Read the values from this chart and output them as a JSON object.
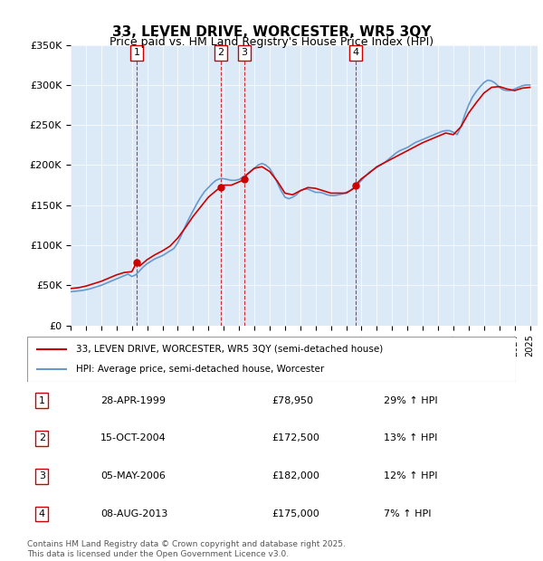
{
  "title": "33, LEVEN DRIVE, WORCESTER, WR5 3QY",
  "subtitle": "Price paid vs. HM Land Registry's House Price Index (HPI)",
  "ylabel_ticks": [
    "£0",
    "£50K",
    "£100K",
    "£150K",
    "£200K",
    "£250K",
    "£300K",
    "£350K"
  ],
  "ylim": [
    0,
    350000
  ],
  "yticks": [
    0,
    50000,
    100000,
    150000,
    200000,
    250000,
    300000,
    350000
  ],
  "xlim_start": 1995.0,
  "xlim_end": 2025.5,
  "bg_color": "#dce9f7",
  "plot_bg": "#dce9f7",
  "red_color": "#cc0000",
  "blue_color": "#6699cc",
  "transactions": [
    {
      "num": 1,
      "date": "28-APR-1999",
      "price": 78950,
      "pct": "29%",
      "year": 1999.32
    },
    {
      "num": 2,
      "date": "15-OCT-2004",
      "price": 172500,
      "pct": "13%",
      "year": 2004.79
    },
    {
      "num": 3,
      "date": "05-MAY-2006",
      "price": 182000,
      "pct": "12%",
      "year": 2006.34
    },
    {
      "num": 4,
      "date": "08-AUG-2013",
      "price": 175000,
      "pct": "7%",
      "year": 2013.6
    }
  ],
  "legend_line1": "33, LEVEN DRIVE, WORCESTER, WR5 3QY (semi-detached house)",
  "legend_line2": "HPI: Average price, semi-detached house, Worcester",
  "footer": "Contains HM Land Registry data © Crown copyright and database right 2025.\nThis data is licensed under the Open Government Licence v3.0.",
  "hpi_data": {
    "years": [
      1995.0,
      1995.25,
      1995.5,
      1995.75,
      1996.0,
      1996.25,
      1996.5,
      1996.75,
      1997.0,
      1997.25,
      1997.5,
      1997.75,
      1998.0,
      1998.25,
      1998.5,
      1998.75,
      1999.0,
      1999.25,
      1999.5,
      1999.75,
      2000.0,
      2000.25,
      2000.5,
      2000.75,
      2001.0,
      2001.25,
      2001.5,
      2001.75,
      2002.0,
      2002.25,
      2002.5,
      2002.75,
      2003.0,
      2003.25,
      2003.5,
      2003.75,
      2004.0,
      2004.25,
      2004.5,
      2004.75,
      2005.0,
      2005.25,
      2005.5,
      2005.75,
      2006.0,
      2006.25,
      2006.5,
      2006.75,
      2007.0,
      2007.25,
      2007.5,
      2007.75,
      2008.0,
      2008.25,
      2008.5,
      2008.75,
      2009.0,
      2009.25,
      2009.5,
      2009.75,
      2010.0,
      2010.25,
      2010.5,
      2010.75,
      2011.0,
      2011.25,
      2011.5,
      2011.75,
      2012.0,
      2012.25,
      2012.5,
      2012.75,
      2013.0,
      2013.25,
      2013.5,
      2013.75,
      2014.0,
      2014.25,
      2014.5,
      2014.75,
      2015.0,
      2015.25,
      2015.5,
      2015.75,
      2016.0,
      2016.25,
      2016.5,
      2016.75,
      2017.0,
      2017.25,
      2017.5,
      2017.75,
      2018.0,
      2018.25,
      2018.5,
      2018.75,
      2019.0,
      2019.25,
      2019.5,
      2019.75,
      2020.0,
      2020.25,
      2020.5,
      2020.75,
      2021.0,
      2021.25,
      2021.5,
      2021.75,
      2022.0,
      2022.25,
      2022.5,
      2022.75,
      2023.0,
      2023.25,
      2023.5,
      2023.75,
      2024.0,
      2024.25,
      2024.5,
      2024.75,
      2025.0
    ],
    "values": [
      42000,
      42500,
      43000,
      43500,
      44500,
      45500,
      47000,
      48500,
      50000,
      52000,
      54000,
      56000,
      58000,
      60000,
      62000,
      64000,
      61000,
      63000,
      68000,
      73000,
      77000,
      80000,
      83000,
      85000,
      87000,
      90000,
      93000,
      96000,
      103000,
      113000,
      124000,
      134000,
      143000,
      152000,
      160000,
      167000,
      172000,
      177000,
      181000,
      183000,
      183000,
      182000,
      181000,
      181000,
      182000,
      185000,
      188000,
      192000,
      196000,
      200000,
      202000,
      200000,
      196000,
      188000,
      178000,
      168000,
      160000,
      158000,
      160000,
      163000,
      168000,
      170000,
      170000,
      168000,
      166000,
      166000,
      165000,
      163000,
      162000,
      162000,
      163000,
      164000,
      166000,
      168000,
      172000,
      176000,
      181000,
      186000,
      191000,
      194000,
      197000,
      200000,
      203000,
      207000,
      211000,
      215000,
      218000,
      220000,
      222000,
      225000,
      228000,
      230000,
      232000,
      234000,
      236000,
      238000,
      240000,
      242000,
      243000,
      243000,
      241000,
      238000,
      248000,
      263000,
      275000,
      285000,
      292000,
      298000,
      303000,
      306000,
      305000,
      302000,
      297000,
      294000,
      293000,
      293000,
      295000,
      297000,
      299000,
      300000,
      300000
    ]
  },
  "red_data": {
    "years": [
      1995.0,
      1995.5,
      1996.0,
      1996.5,
      1997.0,
      1997.5,
      1998.0,
      1998.5,
      1999.0,
      1999.32,
      1999.5,
      2000.0,
      2000.5,
      2001.0,
      2001.5,
      2002.0,
      2002.5,
      2003.0,
      2003.5,
      2004.0,
      2004.5,
      2004.79,
      2005.0,
      2005.5,
      2006.0,
      2006.34,
      2006.5,
      2007.0,
      2007.5,
      2008.0,
      2008.5,
      2009.0,
      2009.5,
      2010.0,
      2010.5,
      2011.0,
      2011.5,
      2012.0,
      2012.5,
      2013.0,
      2013.5,
      2013.6,
      2014.0,
      2014.5,
      2015.0,
      2015.5,
      2016.0,
      2016.5,
      2017.0,
      2017.5,
      2018.0,
      2018.5,
      2019.0,
      2019.5,
      2020.0,
      2020.5,
      2021.0,
      2021.5,
      2022.0,
      2022.5,
      2023.0,
      2023.5,
      2024.0,
      2024.5,
      2025.0
    ],
    "values": [
      46000,
      47000,
      49000,
      52000,
      55000,
      59000,
      63000,
      66000,
      67000,
      78950,
      74000,
      82000,
      88000,
      93000,
      99000,
      109000,
      122000,
      136000,
      148000,
      160000,
      168000,
      172500,
      175000,
      175000,
      179000,
      182000,
      188000,
      196000,
      198000,
      192000,
      180000,
      165000,
      163000,
      168000,
      172000,
      171000,
      168000,
      165000,
      165000,
      165000,
      171000,
      175000,
      183000,
      190000,
      198000,
      203000,
      208000,
      213000,
      218000,
      223000,
      228000,
      232000,
      236000,
      240000,
      238000,
      248000,
      265000,
      278000,
      290000,
      297000,
      298000,
      295000,
      293000,
      296000,
      297000
    ]
  }
}
